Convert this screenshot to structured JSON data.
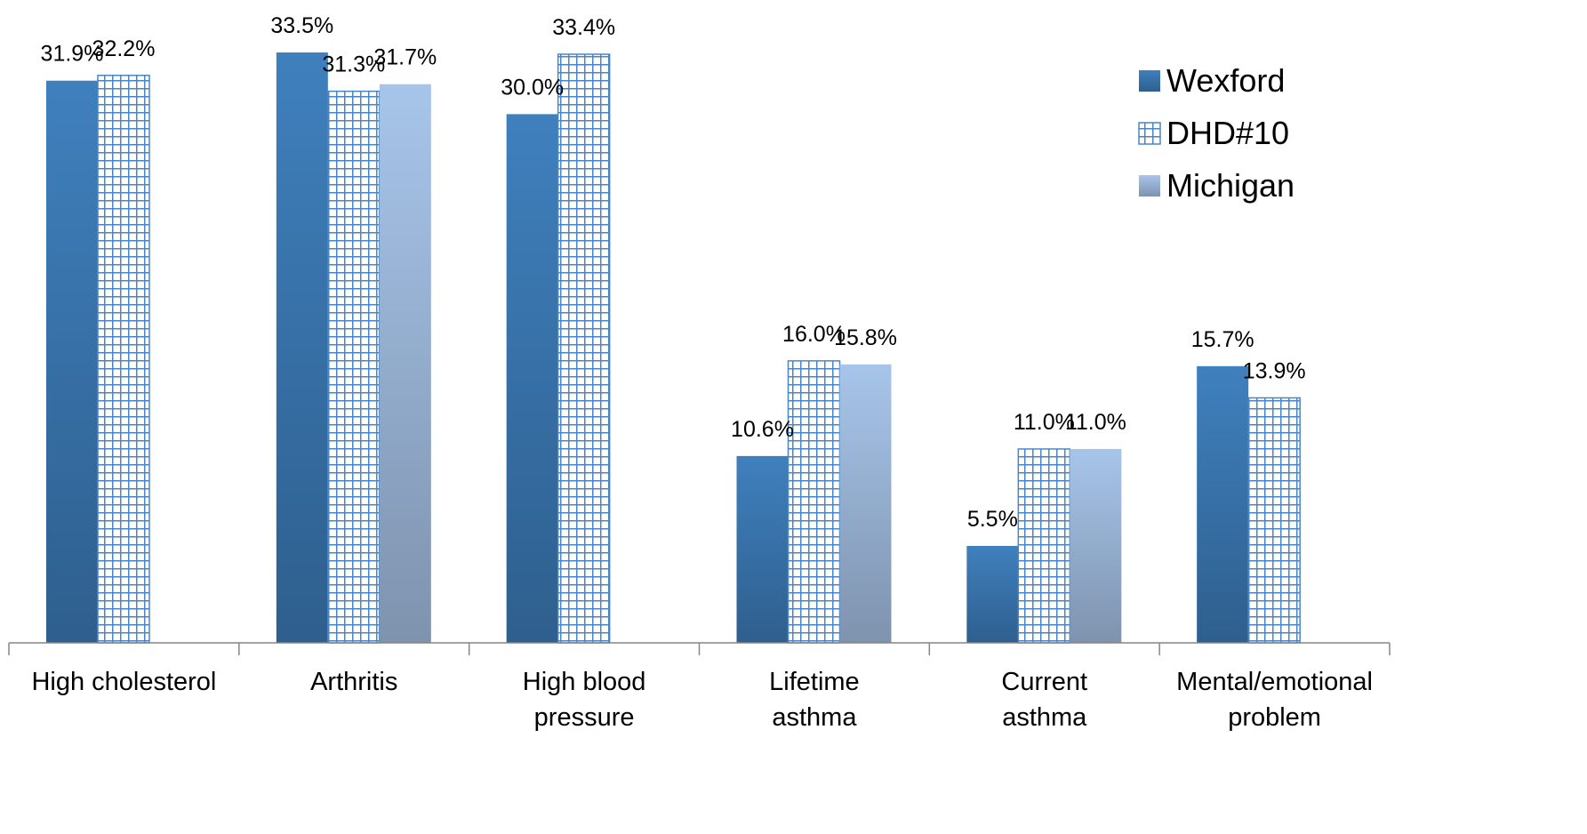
{
  "chart_data": {
    "type": "bar",
    "title": "",
    "xlabel": "",
    "ylabel": "",
    "ylim": [
      0,
      35
    ],
    "grid": false,
    "legend_position": "top-right",
    "categories": [
      [
        "High cholesterol"
      ],
      [
        "Arthritis"
      ],
      [
        "High blood",
        "pressure"
      ],
      [
        "Lifetime",
        "asthma"
      ],
      [
        "Current",
        "asthma"
      ],
      [
        "Mental/emotional",
        "problem"
      ]
    ],
    "series": [
      {
        "name": "Wexford",
        "fill": "solid",
        "color": "#3a78b4",
        "values": [
          31.9,
          33.5,
          30.0,
          10.6,
          5.5,
          15.7
        ],
        "labels": [
          "31.9%",
          "33.5%",
          "30.0%",
          "10.6%",
          "5.5%",
          "15.7%"
        ]
      },
      {
        "name": "DHD#10",
        "fill": "grid",
        "color": "#4a86c6",
        "values": [
          32.2,
          31.3,
          33.4,
          16.0,
          11.0,
          13.9
        ],
        "labels": [
          "32.2%",
          "31.3%",
          "33.4%",
          "16.0%",
          "11.0%",
          "13.9%"
        ]
      },
      {
        "name": "Michigan",
        "fill": "light",
        "color": "#a3c1e6",
        "values": [
          null,
          31.7,
          null,
          15.8,
          11.0,
          null
        ],
        "labels": [
          "",
          "31.7%",
          "",
          "15.8%",
          "11.0%",
          ""
        ]
      }
    ]
  }
}
